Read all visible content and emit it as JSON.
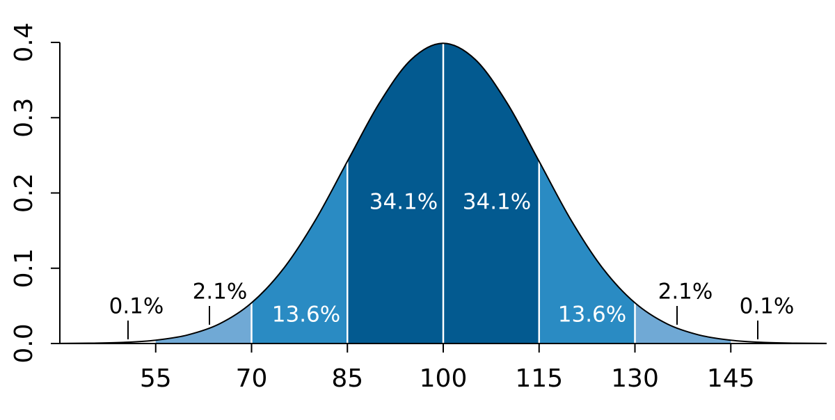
{
  "chart_data": {
    "type": "density",
    "x": [
      40,
      45,
      50,
      55,
      60,
      65,
      70,
      75,
      80,
      85,
      90,
      95,
      100,
      105,
      110,
      115,
      120,
      125,
      130,
      135,
      140,
      145,
      150,
      155,
      160
    ],
    "values": [
      0.0001,
      0.0005,
      0.0015,
      0.0044,
      0.0114,
      0.0262,
      0.054,
      0.0995,
      0.164,
      0.242,
      0.3194,
      0.3774,
      0.3989,
      0.3774,
      0.3194,
      0.242,
      0.164,
      0.0995,
      0.054,
      0.0262,
      0.0114,
      0.0044,
      0.0015,
      0.0005,
      0.0001
    ],
    "regions": {
      "bounds": [
        55,
        70,
        85,
        100,
        115,
        130,
        145
      ],
      "values": [
        0.1,
        2.1,
        13.6,
        34.1,
        34.1,
        13.6,
        2.1,
        0.1
      ],
      "value_labels": [
        "0.1%",
        "2.1%",
        "13.6%",
        "34.1%",
        "34.1%",
        "13.6%",
        "2.1%",
        "0.1%"
      ],
      "colors": [
        "#ffffff",
        "#70a9d5",
        "#2a8bc3",
        "#035a90",
        "#035a90",
        "#2a8bc3",
        "#70a9d5",
        "#ffffff"
      ]
    },
    "xlim": [
      40,
      160
    ],
    "ylim": [
      0,
      0.4
    ],
    "xticks": [
      55,
      70,
      85,
      100,
      115,
      130,
      145
    ],
    "yticks": [
      {
        "value": 0,
        "label": "0.0"
      },
      0.1,
      0.2,
      0.3,
      0.4
    ]
  }
}
